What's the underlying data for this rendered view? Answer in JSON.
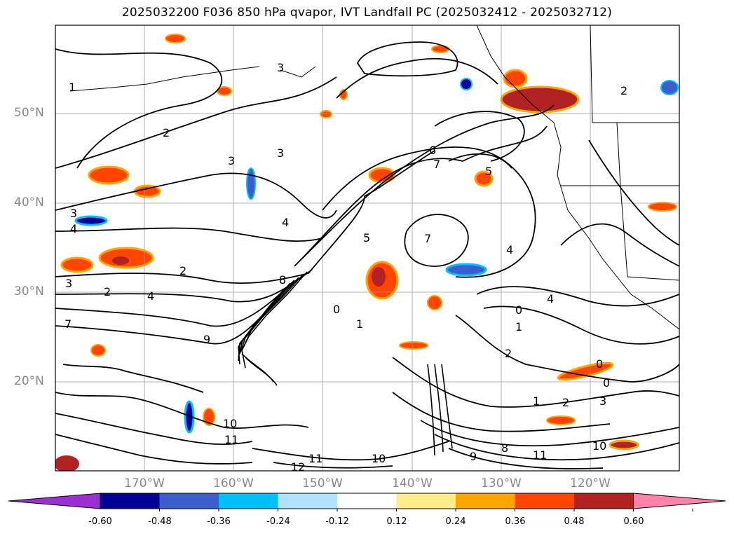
{
  "title": "2025032200 F036 850 hPa qvapor, IVT Landfall PC (2025032412 - 2025032712)",
  "map": {
    "lat_labels": [
      "50°N",
      "40°N",
      "30°N",
      "20°N"
    ],
    "lon_labels": [
      "170°W",
      "160°W",
      "150°W",
      "140°W",
      "130°W",
      "120°W"
    ],
    "contour_labels": [
      "1",
      "2",
      "3",
      "4",
      "5",
      "6",
      "7",
      "8",
      "9",
      "0",
      "10",
      "11",
      "12"
    ]
  },
  "colorbar": {
    "ticks": [
      "-0.60",
      "-0.48",
      "-0.36",
      "-0.24",
      "-0.12",
      "0.12",
      "0.24",
      "0.36",
      "0.48",
      "0.60"
    ],
    "colors": [
      "#9b30d0",
      "#000096",
      "#3a5fcd",
      "#00bfff",
      "#b0e2ff",
      "#ffffff",
      "#ffec8b",
      "#ffa500",
      "#ff4500",
      "#b22222",
      "#ff82ab"
    ],
    "extend": "both"
  }
}
